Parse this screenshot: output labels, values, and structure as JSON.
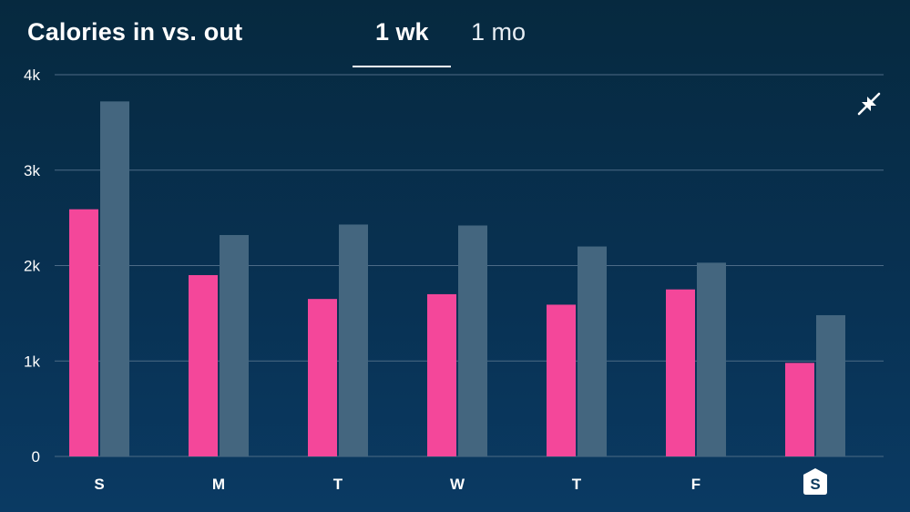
{
  "header": {
    "title": "Calories in vs. out",
    "tabs": [
      {
        "label": "1 wk",
        "selected": true
      },
      {
        "label": "1 mo",
        "selected": false
      }
    ]
  },
  "controls": {
    "collapse_icon": "collapse-arrows-icon"
  },
  "colors": {
    "calories_in": "#f4479a",
    "calories_out": "#44667f",
    "gridline": "#4d6b86",
    "today_badge": "#ffffff"
  },
  "chart_data": {
    "type": "bar",
    "categories": [
      "S",
      "M",
      "T",
      "W",
      "T",
      "F",
      "S"
    ],
    "today_index": 6,
    "series": [
      {
        "values": [
          2590,
          1900,
          1650,
          1700,
          1590,
          1750,
          980
        ]
      },
      {
        "values": [
          3720,
          2320,
          2430,
          2420,
          2200,
          2030,
          1480
        ]
      }
    ],
    "ylim": [
      0,
      4000
    ],
    "yticks": [
      0,
      1000,
      2000,
      3000,
      4000
    ],
    "ytick_labels": [
      "0",
      "1k",
      "2k",
      "3k",
      "4k"
    ],
    "grid": true
  }
}
